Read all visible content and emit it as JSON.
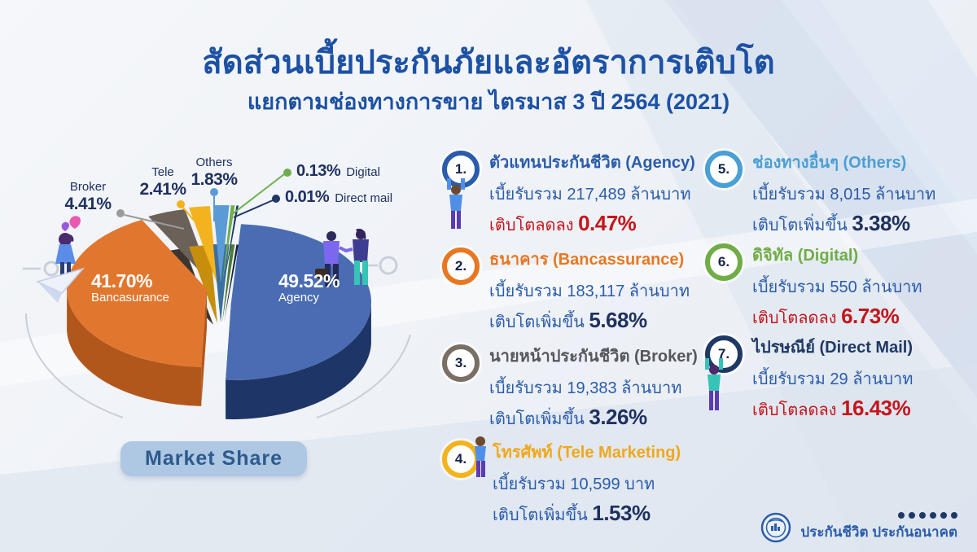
{
  "header": {
    "title": "สัดส่วนเบี้ยประกันภัยและอัตราการเติบโต",
    "subtitle": "แยกตามช่องทางการขาย ไตรมาส 3 ปี 2564 (2021)"
  },
  "chart_data": {
    "type": "pie",
    "title": "Market Share",
    "unit": "%",
    "grid": false,
    "legend_position": "callouts",
    "slices": [
      {
        "label": "Agency",
        "value": 49.52,
        "display": "49.52%",
        "color": "#4a6cb3",
        "side_color": "#1e3567"
      },
      {
        "label": "Bancasurance",
        "value": 41.7,
        "display": "41.70%",
        "color": "#e1772f",
        "side_color": "#b2571c"
      },
      {
        "label": "Broker",
        "value": 4.41,
        "display": "4.41%",
        "color": "#6b6158",
        "side_color": "#3c362f"
      },
      {
        "label": "Tele",
        "value": 2.41,
        "display": "2.41%",
        "color": "#f2b31e",
        "side_color": "#c78e0e"
      },
      {
        "label": "Others",
        "value": 1.83,
        "display": "1.83%",
        "color": "#5b9bd5",
        "side_color": "#3a6f9f"
      },
      {
        "label": "Digital",
        "value": 0.13,
        "display": "0.13%",
        "color": "#6fae4e",
        "side_color": "#4c7d33"
      },
      {
        "label": "Direct mail",
        "value": 0.01,
        "display": "0.01%",
        "color": "#1f3864",
        "side_color": "#122240"
      }
    ],
    "inner_labels": [
      {
        "value": "41.70%",
        "name": "Bancasurance"
      },
      {
        "value": "49.52%",
        "name": "Agency"
      }
    ],
    "callouts": [
      {
        "name": "Broker",
        "value": "4.41%",
        "color": "#9b9b9b"
      },
      {
        "name": "Tele",
        "value": "2.41%",
        "color": "#f2b31e"
      },
      {
        "name": "Others",
        "value": "1.83%",
        "color": "#5b9bd5"
      },
      {
        "name": "Digital",
        "value": "0.13%",
        "color": "#6fae4e"
      },
      {
        "name": "Direct mail",
        "value": "0.01%",
        "color": "#1f3864"
      }
    ]
  },
  "market_share_badge": "Market Share",
  "channels": [
    {
      "no": "1.",
      "ring_color": "#2a5caa",
      "title_color": "#2a5caa",
      "title": "ตัวแทนประกันชีวิต (Agency)",
      "premium": "เบี้ยรับรวม 217,489 ล้านบาท",
      "growth_label": "เติบโตลดลง",
      "growth_value": "0.47%",
      "direction": "down"
    },
    {
      "no": "2.",
      "ring_color": "#e87722",
      "title_color": "#e87722",
      "title": "ธนาคาร (Bancassurance)",
      "premium": "เบี้ยรับรวม 183,117 ล้านบาท",
      "growth_label": "เติบโตเพิ่มขึ้น",
      "growth_value": "5.68%",
      "direction": "up"
    },
    {
      "no": "3.",
      "ring_color": "#7a6f63",
      "title_color": "#55565e",
      "title": "นายหน้าประกันชีวิต (Broker)",
      "premium": "เบี้ยรับรวม 19,383 ล้านบาท",
      "growth_label": "เติบโตเพิ่มขึ้น",
      "growth_value": "3.26%",
      "direction": "up"
    },
    {
      "no": "4.",
      "ring_color": "#f2b31e",
      "title_color": "#f0a81c",
      "title": "โทรศัพท์ (Tele Marketing)",
      "premium": "เบี้ยรับรวม 10,599 บาท",
      "growth_label": "เติบโตเพิ่มขึ้น",
      "growth_value": "1.53%",
      "direction": "up"
    },
    {
      "no": "5.",
      "ring_color": "#4a9fd4",
      "title_color": "#4a9fd4",
      "title": "ช่องทางอื่นๆ (Others)",
      "premium": "เบี้ยรับรวม 8,015 ล้านบาท",
      "growth_label": "เติบโตเพิ่มขึ้น",
      "growth_value": "3.38%",
      "direction": "up"
    },
    {
      "no": "6.",
      "ring_color": "#70ad47",
      "title_color": "#70ad47",
      "title": "ดิจิทัล (Digital)",
      "premium": "เบี้ยรับรวม 550 ล้านบาท",
      "growth_label": "เติบโตลดลง",
      "growth_value": "6.73%",
      "direction": "down"
    },
    {
      "no": "7.",
      "ring_color": "#1f3864",
      "title_color": "#1f3864",
      "title": "ไปรษณีย์ (Direct Mail)",
      "premium": "เบี้ยรับรวม 29 ล้านบาท",
      "growth_label": "เติบโตลดลง",
      "growth_value": "16.43%",
      "direction": "down"
    }
  ],
  "footer": {
    "brand": "ประกันชีวิต ประกันอนาคต"
  },
  "colors": {
    "title": "#1c51a4",
    "body": "#2a5caa",
    "negative": "#c4161c",
    "positive_number": "#1f3160"
  }
}
